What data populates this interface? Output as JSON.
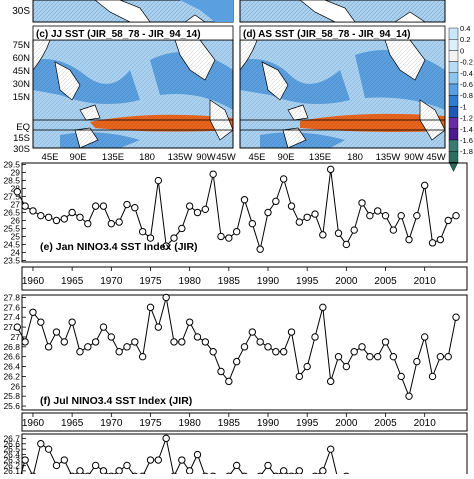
{
  "maps": {
    "top_labels": [
      "30S"
    ],
    "panels": [
      {
        "label": "(c) JJ SST (JIR_58_78 - JIR_94_14)",
        "lat_labels": [
          "75N",
          "60N",
          "45N",
          "30N",
          "15N",
          "EQ",
          "15S",
          "30S"
        ]
      },
      {
        "label": "(d) AS SST (JIR_58_78 - JIR_94_14)"
      }
    ],
    "lon_labels": [
      "45E",
      "90E",
      "135E",
      "180",
      "135W",
      "90W",
      "45W"
    ],
    "colorbar_labels": [
      "0.4",
      "0.2",
      "0",
      "-0.2",
      "-0.4",
      "-0.6",
      "-0.8",
      "-1",
      "-1.2",
      "-1.4",
      "-1.6",
      "-1.8"
    ],
    "colors": {
      "warm": "#e8641c",
      "cool": "#5a9fe0",
      "pale": "#a9d2f2",
      "land": "#ffffff"
    }
  },
  "chart_data": [
    {
      "type": "line",
      "title": "(e) Jan NINO3.4 SST Index (JIR)",
      "x": [
        1958,
        1959,
        1960,
        1961,
        1962,
        1963,
        1964,
        1965,
        1966,
        1967,
        1968,
        1969,
        1970,
        1971,
        1972,
        1973,
        1974,
        1975,
        1976,
        1977,
        1978,
        1979,
        1980,
        1981,
        1982,
        1983,
        1984,
        1985,
        1986,
        1987,
        1988,
        1989,
        1990,
        1991,
        1992,
        1993,
        1994,
        1995,
        1996,
        1997,
        1998,
        1999,
        2000,
        2001,
        2002,
        2003,
        2004,
        2005,
        2006,
        2007,
        2008,
        2009,
        2010,
        2011,
        2012,
        2013,
        2014
      ],
      "y": [
        27.8,
        26.9,
        26.6,
        26.3,
        26.2,
        26.0,
        26.1,
        26.5,
        26.2,
        25.8,
        26.9,
        26.9,
        25.8,
        25.9,
        27.0,
        26.8,
        25.3,
        24.9,
        28.5,
        24.4,
        24.9,
        25.5,
        26.9,
        26.5,
        26.7,
        28.9,
        25.0,
        24.9,
        25.3,
        27.3,
        25.8,
        24.2,
        26.5,
        27.2,
        28.6,
        26.9,
        25.9,
        26.2,
        26.4,
        25.1,
        29.2,
        25.2,
        24.5,
        25.4,
        27.1,
        26.3,
        26.6,
        26.3,
        25.4,
        26.3,
        24.8,
        26.3,
        28.2,
        24.6,
        24.8,
        26.0,
        26.3
      ],
      "yticks": [
        "29.5",
        "29",
        "28.5",
        "28",
        "27.5",
        "27",
        "26.5",
        "26",
        "25.5",
        "25",
        "24.5",
        "24",
        "23.5"
      ],
      "ylim": [
        23.4,
        29.6
      ],
      "xticks": [
        "1960",
        "1965",
        "1970",
        "1975",
        "1980",
        "1985",
        "1990",
        "1995",
        "2000",
        "2005",
        "2010"
      ]
    },
    {
      "type": "line",
      "title": "(f) Jul NINO3.4 SST Index (JIR)",
      "x": [
        1958,
        1959,
        1960,
        1961,
        1962,
        1963,
        1964,
        1965,
        1966,
        1967,
        1968,
        1969,
        1970,
        1971,
        1972,
        1973,
        1974,
        1975,
        1976,
        1977,
        1978,
        1979,
        1980,
        1981,
        1982,
        1983,
        1984,
        1985,
        1986,
        1987,
        1988,
        1989,
        1990,
        1991,
        1992,
        1993,
        1994,
        1995,
        1996,
        1997,
        1998,
        1999,
        2000,
        2001,
        2002,
        2003,
        2004,
        2005,
        2006,
        2007,
        2008,
        2009,
        2010,
        2011,
        2012,
        2013,
        2014
      ],
      "y": [
        27.2,
        26.9,
        27.5,
        27.3,
        26.8,
        27.1,
        26.9,
        27.3,
        26.7,
        26.8,
        26.9,
        27.2,
        27.0,
        26.7,
        26.8,
        26.9,
        26.6,
        27.6,
        27.2,
        27.8,
        26.9,
        26.9,
        27.3,
        27.0,
        26.9,
        26.7,
        26.3,
        26.1,
        26.5,
        26.8,
        27.1,
        26.9,
        26.8,
        26.7,
        26.7,
        27.1,
        26.2,
        26.4,
        27.0,
        27.6,
        26.1,
        26.6,
        26.4,
        26.7,
        26.8,
        26.6,
        26.6,
        26.9,
        26.6,
        26.2,
        25.8,
        26.5,
        27.0,
        26.2,
        26.6,
        26.6,
        27.4
      ],
      "yticks": [
        "27.8",
        "27.6",
        "27.4",
        "27.2",
        "27",
        "26.8",
        "26.6",
        "26.4",
        "26.2",
        "26",
        "25.8",
        "25.6"
      ],
      "ylim": [
        25.52,
        27.85
      ],
      "xticks": [
        "1960",
        "1965",
        "1970",
        "1975",
        "1980",
        "1985",
        "1990",
        "1995",
        "2000",
        "2005",
        "2010"
      ]
    },
    {
      "type": "line",
      "x": [
        1958,
        1959,
        1960,
        1961,
        1962,
        1963,
        1964,
        1965,
        1966,
        1967,
        1968,
        1969,
        1970,
        1971,
        1972,
        1973,
        1974,
        1975,
        1976,
        1977,
        1978,
        1979,
        1980,
        1981,
        1982,
        1983,
        1984,
        1985,
        1986,
        1987,
        1988,
        1989,
        1990,
        1991,
        1992,
        1993,
        1994,
        1995,
        1996,
        1997,
        1998,
        1999,
        2000
      ],
      "y": [
        25.8,
        26.3,
        26.0,
        26.6,
        26.5,
        26.2,
        26.3,
        26.0,
        26.1,
        26.0,
        26.2,
        26.1,
        26.0,
        26.1,
        26.2,
        26.0,
        26.0,
        26.3,
        26.3,
        26.7,
        26.0,
        26.3,
        26.1,
        26.4,
        26.0,
        26.0,
        25.8,
        26.0,
        26.2,
        26.0,
        25.9,
        26.0,
        26.2,
        26.0,
        26.1,
        26.0,
        26.1,
        25.9,
        26.0,
        26.1,
        26.5,
        25.9,
        26.0
      ],
      "yticks": [
        "26.7",
        "26.6",
        "26.5",
        "26.4",
        "26.3",
        "26.2",
        "26.1"
      ],
      "ylim": [
        25.95,
        26.78
      ]
    }
  ]
}
